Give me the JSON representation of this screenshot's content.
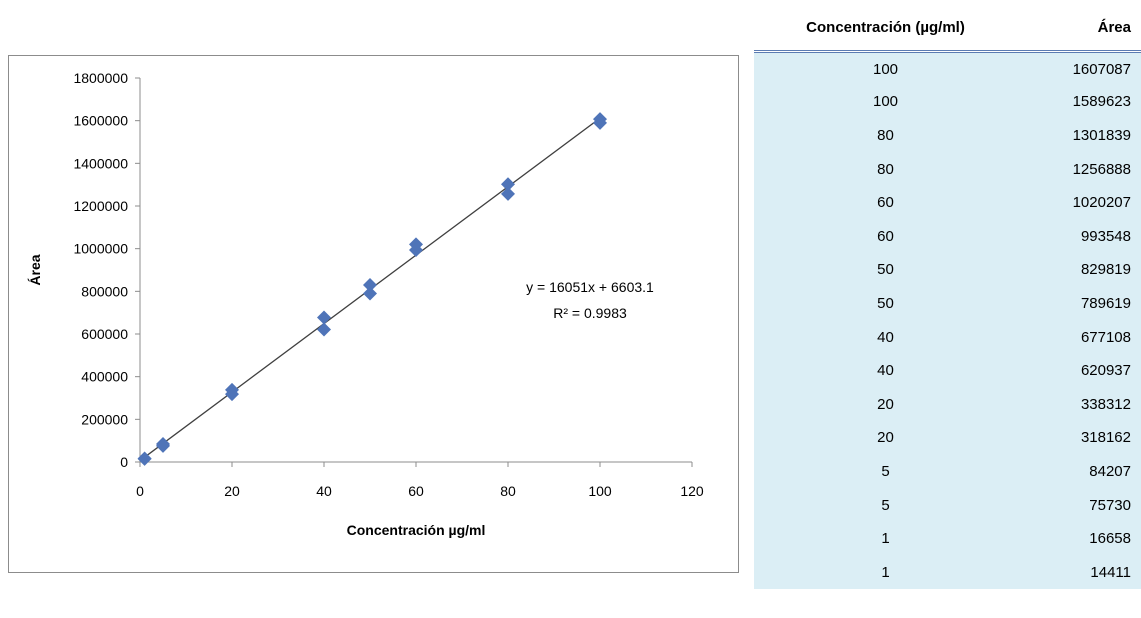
{
  "chart_data": {
    "type": "scatter",
    "title": "",
    "xlabel": "Concentración µg/ml",
    "ylabel": "Área",
    "xlim": [
      0,
      120
    ],
    "ylim": [
      0,
      1800000
    ],
    "x_ticks": [
      0,
      20,
      40,
      60,
      80,
      100,
      120
    ],
    "y_ticks": [
      0,
      200000,
      400000,
      600000,
      800000,
      1000000,
      1200000,
      1400000,
      1600000,
      1800000
    ],
    "grid": false,
    "legend": "none",
    "marker": "diamond",
    "marker_color": "#4f74b8",
    "trendline_color": "#404040",
    "x": [
      100,
      100,
      80,
      80,
      60,
      60,
      50,
      50,
      40,
      40,
      20,
      20,
      5,
      5,
      1,
      1
    ],
    "y": [
      1607087,
      1589623,
      1301839,
      1256888,
      1020207,
      993548,
      829819,
      789619,
      677108,
      620937,
      338312,
      318162,
      84207,
      75730,
      16658,
      14411
    ],
    "trendline": {
      "slope": 16051,
      "intercept": 6603.1,
      "equation": "y = 16051x + 6603.1",
      "r2_label": "R² = 0.9983"
    }
  },
  "table": {
    "headers": [
      "Concentración (µg/ml)",
      "Área"
    ],
    "rows": [
      [
        "100",
        "1607087"
      ],
      [
        "100",
        "1589623"
      ],
      [
        "80",
        "1301839"
      ],
      [
        "80",
        "1256888"
      ],
      [
        "60",
        "1020207"
      ],
      [
        "60",
        "993548"
      ],
      [
        "50",
        "829819"
      ],
      [
        "50",
        "789619"
      ],
      [
        "40",
        "677108"
      ],
      [
        "40",
        "620937"
      ],
      [
        "20",
        "338312"
      ],
      [
        "20",
        "318162"
      ],
      [
        "5",
        "84207"
      ],
      [
        "5",
        "75730"
      ],
      [
        "1",
        "16658"
      ],
      [
        "1",
        "14411"
      ]
    ],
    "header_border_color": "#5b7bb2",
    "row_background": "#dbeef5"
  }
}
